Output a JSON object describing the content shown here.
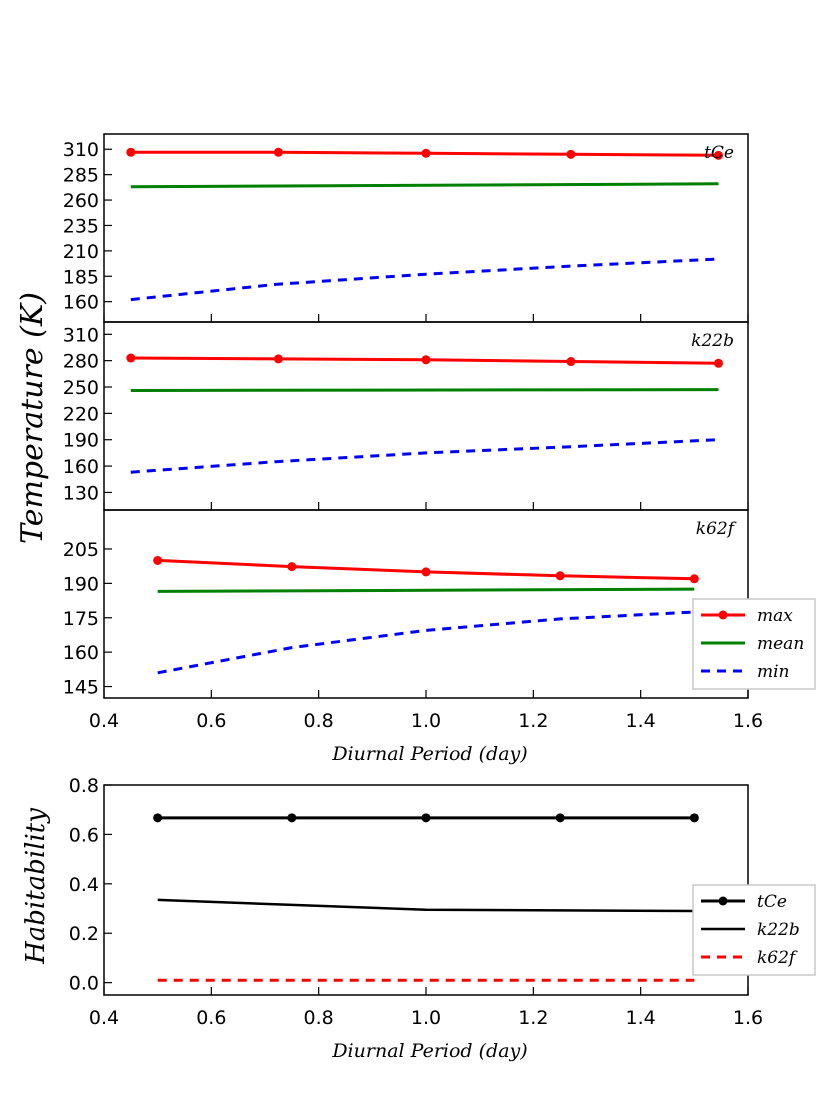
{
  "colors": {
    "max": "#ff0000",
    "mean": "#008000",
    "min": "#0000ff",
    "black": "#000000",
    "k62f_hab": "#ff0000"
  },
  "ylabel_temp": "Temperature (K)",
  "chart_data": [
    {
      "type": "line",
      "panel": "tCe",
      "label": "tCe",
      "xlim": [
        0.4,
        1.6
      ],
      "ylim": [
        140,
        325
      ],
      "yticks": [
        160,
        185,
        210,
        235,
        260,
        285,
        310
      ],
      "show_x_ticklabels": false,
      "series": [
        {
          "name": "max",
          "x": [
            0.45,
            0.725,
            1.0,
            1.27,
            1.545
          ],
          "values": [
            307,
            307,
            306,
            305,
            304
          ]
        },
        {
          "name": "mean",
          "x": [
            0.45,
            1.545
          ],
          "values": [
            273,
            276
          ]
        },
        {
          "name": "min",
          "x": [
            0.45,
            0.72,
            1.0,
            1.27,
            1.545
          ],
          "values": [
            162,
            177,
            187,
            195,
            202
          ]
        }
      ]
    },
    {
      "type": "line",
      "panel": "k22b",
      "label": "k22b",
      "xlim": [
        0.4,
        1.6
      ],
      "ylim": [
        110,
        324
      ],
      "yticks": [
        130,
        160,
        190,
        220,
        250,
        280,
        310
      ],
      "show_x_ticklabels": false,
      "series": [
        {
          "name": "max",
          "x": [
            0.45,
            0.725,
            1.0,
            1.27,
            1.545
          ],
          "values": [
            283,
            282,
            281,
            279,
            277
          ]
        },
        {
          "name": "mean",
          "x": [
            0.45,
            1.545
          ],
          "values": [
            246,
            247
          ]
        },
        {
          "name": "min",
          "x": [
            0.45,
            0.72,
            1.0,
            1.27,
            1.545
          ],
          "values": [
            153,
            165,
            175,
            182,
            190
          ]
        }
      ]
    },
    {
      "type": "line",
      "panel": "k62f",
      "label": "k62f",
      "xlim": [
        0.4,
        1.6
      ],
      "ylim": [
        140,
        222
      ],
      "yticks": [
        145,
        160,
        175,
        190,
        205
      ],
      "xticks": [
        0.4,
        0.6,
        0.8,
        1.0,
        1.2,
        1.4,
        1.6
      ],
      "xticklabels": [
        "0.4",
        "0.6",
        "0.8",
        "1.0",
        "1.2",
        "1.4",
        "1.6"
      ],
      "xlabel": "Diurnal Period (day)",
      "legend": [
        "max",
        "mean",
        "min"
      ],
      "series": [
        {
          "name": "max",
          "x": [
            0.5,
            0.75,
            1.0,
            1.25,
            1.5
          ],
          "values": [
            200,
            197.3,
            195,
            193.3,
            192
          ]
        },
        {
          "name": "mean",
          "x": [
            0.5,
            1.5
          ],
          "values": [
            186.5,
            187.5
          ]
        },
        {
          "name": "min",
          "x": [
            0.5,
            0.75,
            1.0,
            1.25,
            1.5
          ],
          "values": [
            151,
            162,
            169.5,
            174.5,
            177.5
          ]
        }
      ]
    },
    {
      "type": "line",
      "panel": "habitability",
      "xlim": [
        0.4,
        1.6
      ],
      "ylim": [
        -0.05,
        0.8
      ],
      "yticks": [
        0.0,
        0.2,
        0.4,
        0.6,
        0.8
      ],
      "yticklabels": [
        "0.0",
        "0.2",
        "0.4",
        "0.6",
        "0.8"
      ],
      "xticks": [
        0.4,
        0.6,
        0.8,
        1.0,
        1.2,
        1.4,
        1.6
      ],
      "xticklabels": [
        "0.4",
        "0.6",
        "0.8",
        "1.0",
        "1.2",
        "1.4",
        "1.6"
      ],
      "xlabel": "Diurnal Period (day)",
      "ylabel": "Habitability",
      "legend": [
        "tCe",
        "k22b",
        "k62f"
      ],
      "series": [
        {
          "name": "tCe",
          "x": [
            0.5,
            0.75,
            1.0,
            1.25,
            1.5
          ],
          "values": [
            0.667,
            0.667,
            0.667,
            0.667,
            0.667
          ]
        },
        {
          "name": "k22b",
          "x": [
            0.5,
            1.0,
            1.5
          ],
          "values": [
            0.335,
            0.295,
            0.29
          ]
        },
        {
          "name": "k62f",
          "x": [
            0.5,
            1.5
          ],
          "values": [
            0.01,
            0.01
          ]
        }
      ]
    }
  ]
}
